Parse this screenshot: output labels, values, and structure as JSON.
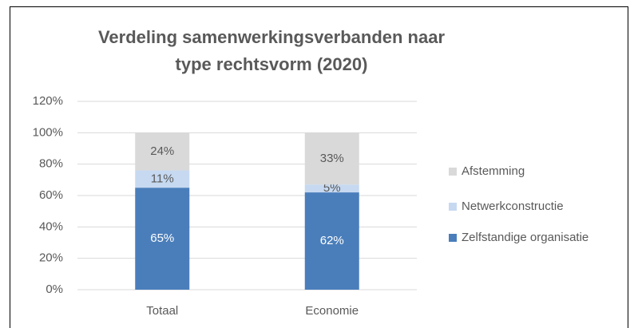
{
  "chart_data": {
    "type": "stacked_bar",
    "title": "Verdeling samenwerkingsverbanden naar type rechtsvorm (2020)",
    "categories": [
      "Totaal",
      "Economie"
    ],
    "series": [
      {
        "name": "Zelfstandige organisatie",
        "color": "#4a7ebb",
        "values": [
          65,
          62
        ],
        "value_labels": [
          "65%",
          "62%"
        ]
      },
      {
        "name": "Netwerkconstructie",
        "color": "#c6d9f1",
        "values": [
          11,
          5
        ],
        "value_labels": [
          "11%",
          "5%"
        ]
      },
      {
        "name": "Afstemming",
        "color": "#d9d9d9",
        "values": [
          24,
          33
        ],
        "value_labels": [
          "24%",
          "33%"
        ]
      }
    ],
    "ylim": [
      0,
      120
    ],
    "yticks": [
      {
        "value": 0,
        "label": "0%"
      },
      {
        "value": 20,
        "label": "20%"
      },
      {
        "value": 40,
        "label": "40%"
      },
      {
        "value": 60,
        "label": "60%"
      },
      {
        "value": 80,
        "label": "80%"
      },
      {
        "value": 100,
        "label": "100%"
      },
      {
        "value": 120,
        "label": "120%"
      }
    ],
    "grid": true,
    "legend": "right"
  }
}
